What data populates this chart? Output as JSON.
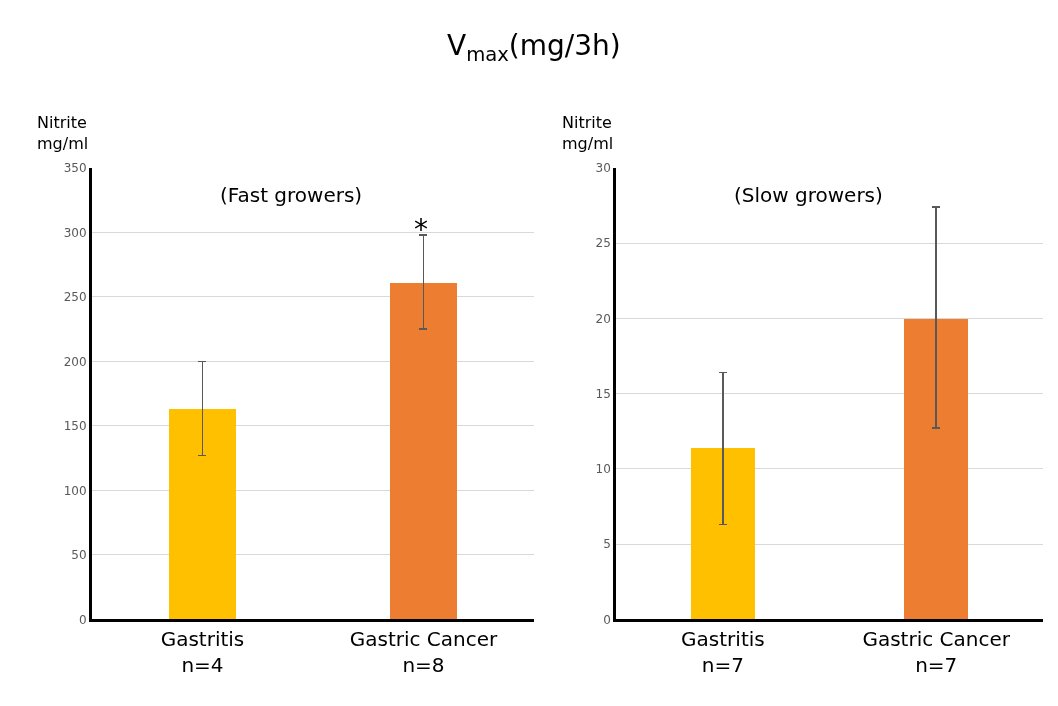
{
  "chart_data": [
    {
      "type": "bar",
      "title": "V$_{max}$(mg/3h)",
      "ylabel": "Nitrite\nmg/ml",
      "categories": [
        "Gastritis\nn=4",
        "Gastric Cancer\nn=8"
      ],
      "values": [
        163,
        261
      ],
      "colors": [
        "#ffc000",
        "#ed7d31"
      ],
      "errors": [
        [
          127,
          200
        ],
        [
          225,
          298
        ]
      ],
      "ylim": [
        0,
        350
      ],
      "yticks": [
        0,
        50,
        100,
        150,
        200,
        250,
        300,
        350
      ],
      "grid": "y",
      "annotations": [
        "(Fast growers)",
        "*"
      ]
    },
    {
      "type": "bar",
      "ylabel": "Nitrite\nmg/ml",
      "categories": [
        "Gastritis\nn=7",
        "Gastric Cancer\nn=7"
      ],
      "values": [
        11.4,
        20.0
      ],
      "colors": [
        "#ffc000",
        "#ed7d31"
      ],
      "errors": [
        [
          6.3,
          16.4
        ],
        [
          12.7,
          27.4
        ]
      ],
      "ylim": [
        0,
        30
      ],
      "yticks": [
        0,
        5,
        10,
        15,
        20,
        25,
        30
      ],
      "grid": "y",
      "annotations": [
        "(Slow growers)"
      ]
    }
  ]
}
